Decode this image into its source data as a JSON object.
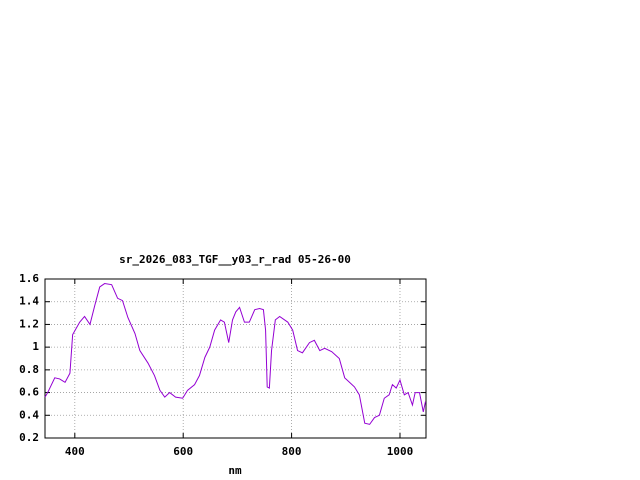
{
  "chart_data": {
    "type": "line",
    "title": "sr_2026_083_TGF__y03_r_rad 05-26-00",
    "xlabel": "nm",
    "x": [
      345,
      350,
      363,
      372,
      382,
      391,
      396,
      409,
      418,
      428,
      437,
      446,
      455,
      468,
      479,
      488,
      498,
      511,
      520,
      535,
      547,
      557,
      566,
      575,
      586,
      599,
      608,
      621,
      630,
      640,
      649,
      658,
      669,
      676,
      684,
      691,
      697,
      704,
      713,
      722,
      732,
      741,
      748,
      752,
      755,
      759,
      763,
      770,
      778,
      793,
      802,
      811,
      820,
      833,
      842,
      852,
      861,
      874,
      888,
      898,
      907,
      916,
      925,
      935,
      944,
      953,
      962,
      971,
      980,
      986,
      993,
      1000,
      1008,
      1015,
      1023,
      1028,
      1036,
      1043,
      1047
    ],
    "series": [
      {
        "color": "#9400d3",
        "values": [
          0.56,
          0.6,
          0.73,
          0.72,
          0.69,
          0.77,
          1.11,
          1.22,
          1.27,
          1.2,
          1.37,
          1.53,
          1.56,
          1.55,
          1.43,
          1.41,
          1.26,
          1.12,
          0.97,
          0.86,
          0.75,
          0.62,
          0.56,
          0.6,
          0.56,
          0.55,
          0.62,
          0.67,
          0.75,
          0.91,
          1.0,
          1.15,
          1.24,
          1.22,
          1.04,
          1.24,
          1.31,
          1.35,
          1.22,
          1.22,
          1.33,
          1.34,
          1.33,
          1.15,
          0.65,
          0.64,
          0.97,
          1.24,
          1.27,
          1.22,
          1.15,
          0.97,
          0.95,
          1.04,
          1.06,
          0.97,
          0.99,
          0.96,
          0.9,
          0.73,
          0.69,
          0.65,
          0.58,
          0.33,
          0.32,
          0.38,
          0.4,
          0.55,
          0.58,
          0.67,
          0.64,
          0.71,
          0.58,
          0.6,
          0.49,
          0.6,
          0.6,
          0.43,
          0.52
        ]
      }
    ],
    "xlim": [
      345,
      1048
    ],
    "ylim": [
      0.2,
      1.6
    ],
    "xticks": [
      400,
      600,
      800,
      1000
    ],
    "yticks": [
      0.2,
      0.4,
      0.6,
      0.8,
      1,
      1.2,
      1.4,
      1.6
    ],
    "grid": true
  }
}
